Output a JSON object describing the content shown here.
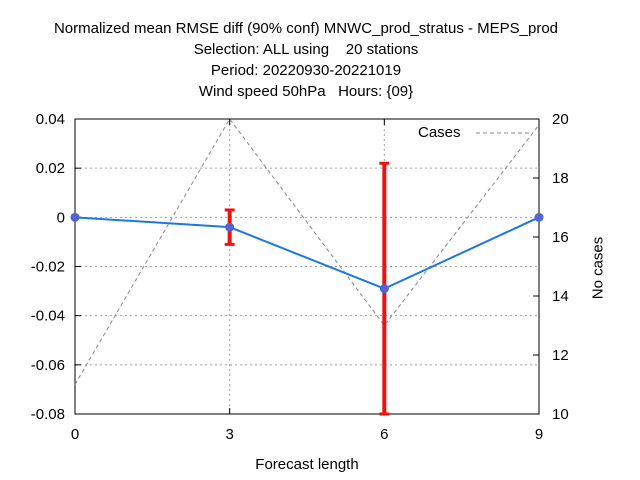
{
  "chart_data": {
    "type": "line",
    "title": [
      "Normalized mean RMSE diff (90% conf) MNWC_prod_stratus - MEPS_prod",
      "Selection: ALL using    20 stations",
      "Period: 20220930-20221019",
      "Wind speed 50hPa   Hours: {09}"
    ],
    "xlabel": "Forecast length",
    "ylabel": "",
    "y2label": "No cases",
    "x": [
      0,
      3,
      6,
      9
    ],
    "xticks": [
      "0",
      "3",
      "6",
      "9"
    ],
    "ylim": [
      -0.08,
      0.04
    ],
    "yticks": [
      "0.04",
      "0.02",
      "0",
      "-0.02",
      "-0.04",
      "-0.06",
      "-0.08"
    ],
    "y2lim": [
      10,
      20
    ],
    "y2ticks": [
      "20",
      "18",
      "16",
      "14",
      "12",
      "10"
    ],
    "grid": true,
    "series": [
      {
        "values": [
          0.0,
          -0.004,
          -0.029,
          0.0
        ],
        "color": "#1e78dc",
        "marker_color": "#6a5acd",
        "axis": "left"
      },
      {
        "name": "Cases",
        "values": [
          11,
          20,
          13,
          19.8
        ],
        "color": "#888888",
        "style": "dashed",
        "axis": "right"
      }
    ],
    "error_bars": [
      {
        "x": 3,
        "low": -0.011,
        "high": 0.003
      },
      {
        "x": 6,
        "low": -0.08,
        "high": 0.022
      }
    ],
    "error_bar_color": "#ee1111",
    "legend_position": "top-right"
  }
}
